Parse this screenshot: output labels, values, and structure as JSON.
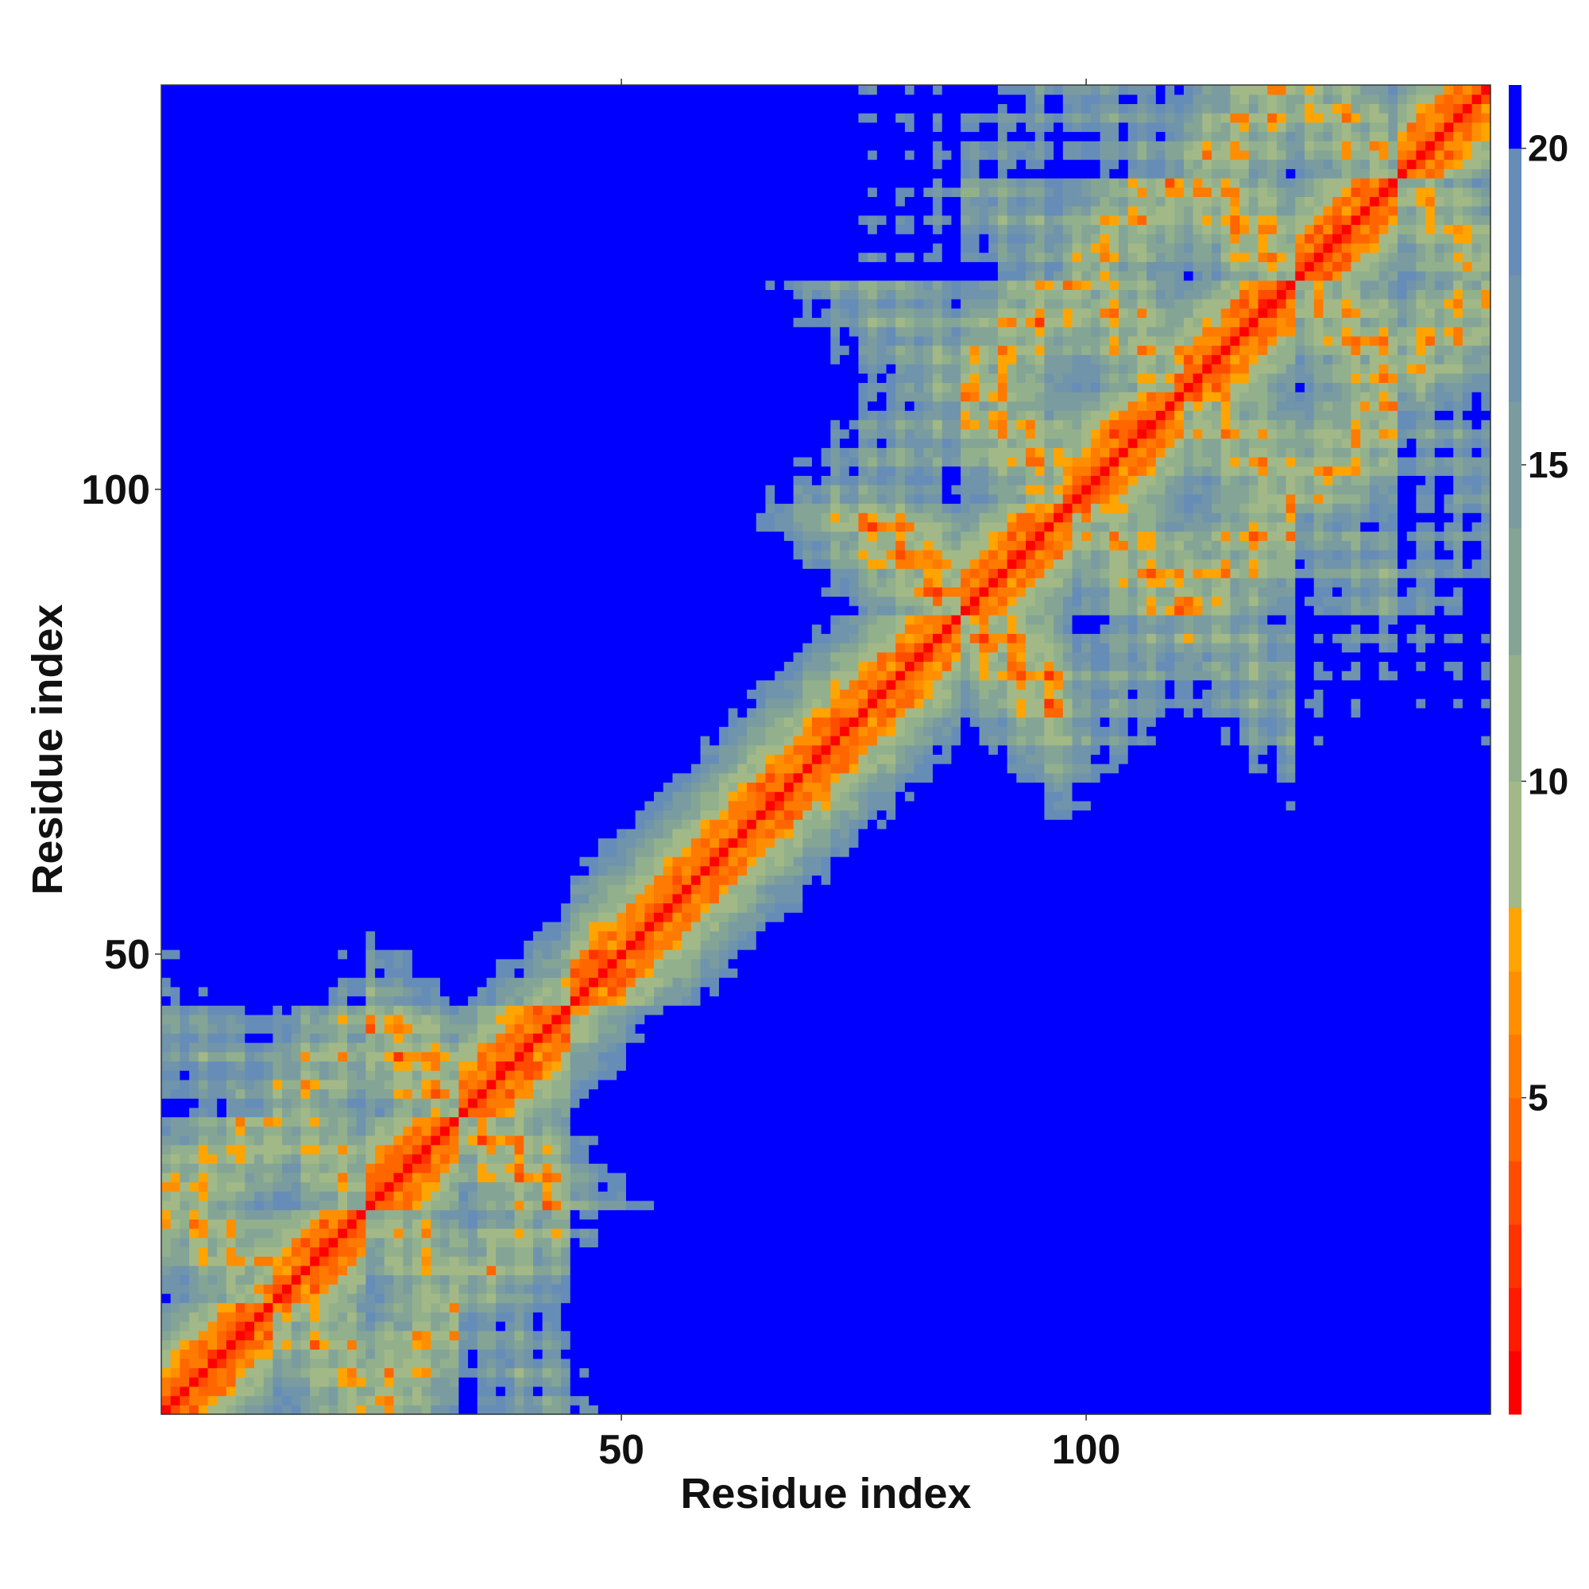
{
  "chart_data": {
    "type": "heatmap",
    "title": "",
    "xlabel": "Residue index",
    "ylabel": "Residue index",
    "n_residues": 143,
    "xlim": [
      1,
      143
    ],
    "ylim": [
      1,
      143
    ],
    "x_ticks": [
      50,
      100
    ],
    "y_ticks": [
      50,
      100
    ],
    "colorbar": {
      "ticks": [
        5,
        10,
        15,
        20
      ],
      "range": [
        0,
        21
      ],
      "bands": [
        {
          "lo": 0,
          "hi": 1,
          "color": "#ff0000"
        },
        {
          "lo": 1,
          "hi": 2,
          "color": "#ff1a00"
        },
        {
          "lo": 2,
          "hi": 3,
          "color": "#ff3300"
        },
        {
          "lo": 3,
          "hi": 4,
          "color": "#ff4c00"
        },
        {
          "lo": 4,
          "hi": 5,
          "color": "#ff6600"
        },
        {
          "lo": 5,
          "hi": 6,
          "color": "#ff7a00"
        },
        {
          "lo": 6,
          "hi": 7,
          "color": "#ff8f00"
        },
        {
          "lo": 7,
          "hi": 8,
          "color": "#ffa400"
        },
        {
          "lo": 8,
          "hi": 10,
          "color": "#a2b987"
        },
        {
          "lo": 10,
          "hi": 12,
          "color": "#93b08d"
        },
        {
          "lo": 12,
          "hi": 14,
          "color": "#84a596"
        },
        {
          "lo": 14,
          "hi": 16,
          "color": "#7a9ca0"
        },
        {
          "lo": 16,
          "hi": 18,
          "color": "#6f94ab"
        },
        {
          "lo": 18,
          "hi": 20,
          "color": "#668db7"
        },
        {
          "lo": 20,
          "hi": 21,
          "color": "#0000ff"
        }
      ]
    },
    "distance_map_description_features": {
      "cutoff": 20,
      "blocks": [
        {
          "i": [
            1,
            50
          ],
          "j": [
            1,
            50
          ]
        },
        {
          "i": [
            100,
            143
          ],
          "j": [
            100,
            143
          ]
        }
      ]
    }
  }
}
